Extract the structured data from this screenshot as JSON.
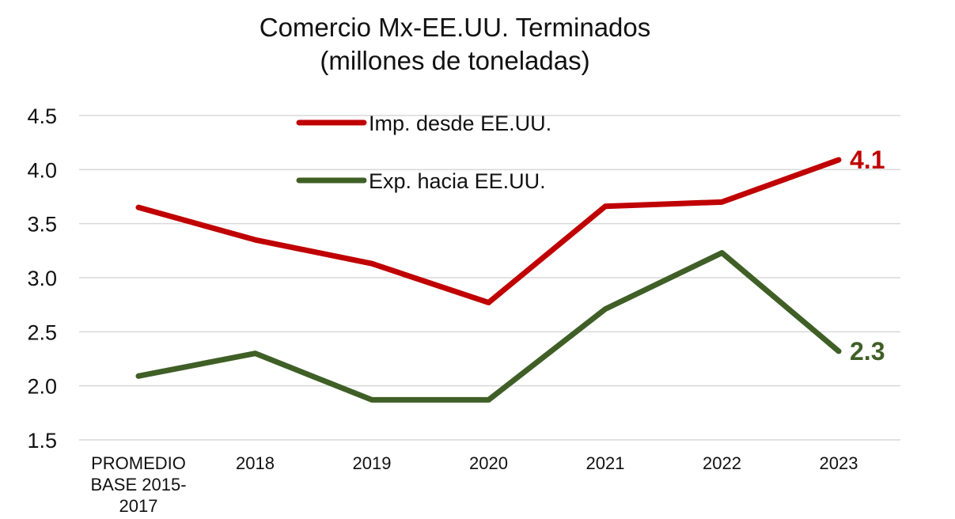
{
  "chart_data": {
    "type": "line",
    "title_lines": [
      "Comercio Mx-EE.UU. Terminados",
      "(millones de toneladas)"
    ],
    "categories": [
      [
        "PROMEDIO",
        "BASE 2015-",
        "2017"
      ],
      [
        "2018"
      ],
      [
        "2019"
      ],
      [
        "2020"
      ],
      [
        "2021"
      ],
      [
        "2022"
      ],
      [
        "2023"
      ]
    ],
    "ylim": [
      1.5,
      4.5
    ],
    "yticks": [
      "1.5",
      "2.0",
      "2.5",
      "3.0",
      "3.5",
      "4.0",
      "4.5"
    ],
    "grid": true,
    "legend_position": "top-center",
    "series": [
      {
        "name": "Imp. desde EE.UU.",
        "color": "#c00000",
        "values": [
          3.65,
          3.35,
          3.13,
          2.77,
          3.66,
          3.7,
          4.09
        ],
        "end_label": "4.1"
      },
      {
        "name": "Exp. hacia EE.UU.",
        "color": "#3f5f26",
        "values": [
          2.09,
          2.3,
          1.87,
          1.87,
          2.71,
          3.23,
          2.32
        ],
        "end_label": "2.3"
      }
    ]
  }
}
